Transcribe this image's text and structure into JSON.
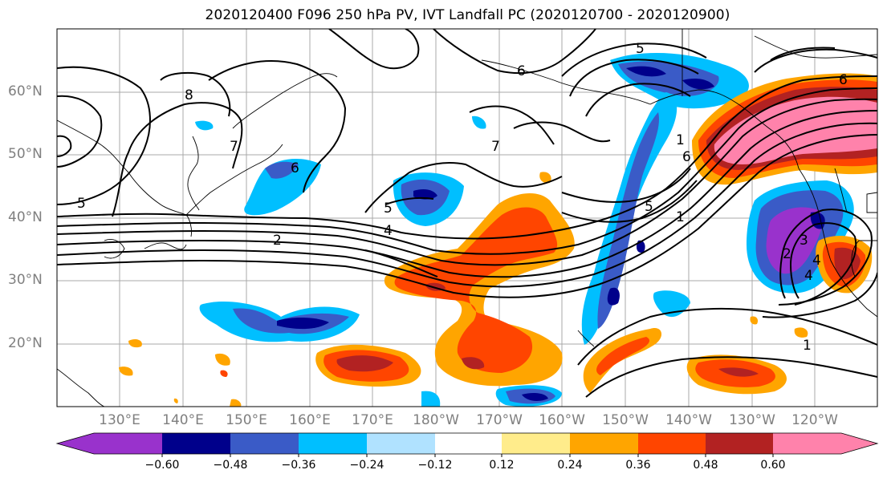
{
  "title": "2020120400 F096 250 hPa PV, IVT Landfall PC (2020120700 - 2020120900)",
  "latitude_labels": [
    "60°N",
    "50°N",
    "40°N",
    "30°N",
    "20°N"
  ],
  "longitude_labels": [
    "130°E",
    "140°E",
    "150°E",
    "160°E",
    "170°E",
    "180°W",
    "170°W",
    "160°W",
    "150°W",
    "140°W",
    "130°W",
    "120°W"
  ],
  "colorbar": {
    "tick_labels": [
      "−0.60",
      "−0.48",
      "−0.36",
      "−0.24",
      "−0.12",
      "0.12",
      "0.24",
      "0.36",
      "0.48",
      "0.60"
    ],
    "colors": [
      "#9932cc",
      "#00008b",
      "#3a5bc7",
      "#00bfff",
      "#b0e2ff",
      "#ffffff",
      "#ffec8b",
      "#ffa500",
      "#ff4500",
      "#b22222",
      "#ff82ab"
    ],
    "extend": "both"
  },
  "contour_labels": [
    "8",
    "7",
    "6",
    "5",
    "4",
    "2",
    "1",
    "5",
    "6",
    "4",
    "7",
    "5",
    "6",
    "5",
    "1",
    "2",
    "4",
    "1",
    "6",
    "3"
  ],
  "map_extent": {
    "lon_min": "120°E",
    "lon_max": "115°W",
    "lat_min": "10°N",
    "lat_max": "70°N"
  }
}
